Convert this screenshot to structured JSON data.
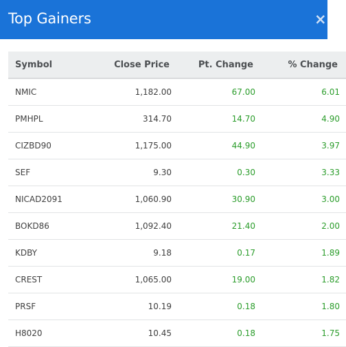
{
  "dialog": {
    "title": "Top Gainers",
    "close_icon": "×"
  },
  "table": {
    "headers": [
      "Symbol",
      "Close Price",
      "Pt. Change",
      "% Change"
    ],
    "rows": [
      {
        "symbol": "NMIC",
        "close": "1,182.00",
        "pt": "67.00",
        "pct": "6.01"
      },
      {
        "symbol": "PMHPL",
        "close": "314.70",
        "pt": "14.70",
        "pct": "4.90"
      },
      {
        "symbol": "CIZBD90",
        "close": "1,175.00",
        "pt": "44.90",
        "pct": "3.97"
      },
      {
        "symbol": "SEF",
        "close": "9.30",
        "pt": "0.30",
        "pct": "3.33"
      },
      {
        "symbol": "NICAD2091",
        "close": "1,060.90",
        "pt": "30.90",
        "pct": "3.00"
      },
      {
        "symbol": "BOKD86",
        "close": "1,092.40",
        "pt": "21.40",
        "pct": "2.00"
      },
      {
        "symbol": "KDBY",
        "close": "9.18",
        "pt": "0.17",
        "pct": "1.89"
      },
      {
        "symbol": "CREST",
        "close": "1,065.00",
        "pt": "19.00",
        "pct": "1.82"
      },
      {
        "symbol": "PRSF",
        "close": "10.19",
        "pt": "0.18",
        "pct": "1.80"
      },
      {
        "symbol": "H8020",
        "close": "10.45",
        "pt": "0.18",
        "pct": "1.75"
      }
    ]
  },
  "colors": {
    "header_bg": "#1a73d8",
    "positive": "#2a9c2a",
    "table_header_bg": "#eceeef"
  }
}
